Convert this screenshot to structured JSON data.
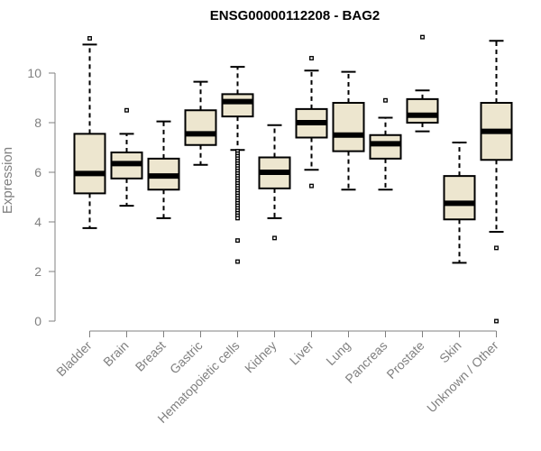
{
  "chart_data": {
    "type": "boxplot",
    "title": "ENSG00000112208 - BAG2",
    "xlabel": "",
    "ylabel": "Expression",
    "ylim": [
      0,
      11.5
    ],
    "yticks": [
      "0",
      "2",
      "4",
      "6",
      "8",
      "10"
    ],
    "grid": false,
    "legend": "none",
    "colors": {
      "box_fill": "#ede6cf",
      "stroke": "#000000",
      "axis": "#808080",
      "text": "#808080"
    },
    "categories": [
      "Bladder",
      "Brain",
      "Breast",
      "Gastric",
      "Hematopoietic cells",
      "Kidney",
      "Liver",
      "Lung",
      "Pancreas",
      "Prostate",
      "Skin",
      "Unknown / Other"
    ],
    "boxes": [
      {
        "category": "Bladder",
        "whisker_low": 3.75,
        "q1": 5.15,
        "median": 5.95,
        "q3": 7.55,
        "whisker_high": 11.15,
        "outliers": [
          11.4
        ]
      },
      {
        "category": "Brain",
        "whisker_low": 4.65,
        "q1": 5.75,
        "median": 6.35,
        "q3": 6.8,
        "whisker_high": 7.55,
        "outliers": [
          8.5
        ]
      },
      {
        "category": "Breast",
        "whisker_low": 4.15,
        "q1": 5.3,
        "median": 5.85,
        "q3": 6.55,
        "whisker_high": 8.05,
        "outliers": []
      },
      {
        "category": "Gastric",
        "whisker_low": 6.3,
        "q1": 7.1,
        "median": 7.55,
        "q3": 8.5,
        "whisker_high": 9.65,
        "outliers": []
      },
      {
        "category": "Hematopoietic cells",
        "whisker_low": 6.9,
        "q1": 8.25,
        "median": 8.85,
        "q3": 9.15,
        "whisker_high": 10.25,
        "outliers": [
          6.85,
          6.75,
          6.65,
          6.55,
          6.45,
          6.35,
          6.25,
          6.15,
          6.05,
          5.95,
          5.85,
          5.75,
          5.65,
          5.55,
          5.45,
          5.35,
          5.25,
          5.15,
          5.05,
          4.95,
          4.85,
          4.75,
          4.65,
          4.55,
          4.45,
          4.35,
          4.25,
          4.15,
          3.25,
          2.4
        ]
      },
      {
        "category": "Kidney",
        "whisker_low": 4.15,
        "q1": 5.35,
        "median": 6.0,
        "q3": 6.6,
        "whisker_high": 7.9,
        "outliers": [
          3.35
        ]
      },
      {
        "category": "Liver",
        "whisker_low": 6.1,
        "q1": 7.4,
        "median": 8.0,
        "q3": 8.55,
        "whisker_high": 10.1,
        "outliers": [
          10.6,
          5.45
        ]
      },
      {
        "category": "Lung",
        "whisker_low": 5.3,
        "q1": 6.85,
        "median": 7.5,
        "q3": 8.8,
        "whisker_high": 10.05,
        "outliers": []
      },
      {
        "category": "Pancreas",
        "whisker_low": 5.3,
        "q1": 6.55,
        "median": 7.15,
        "q3": 7.5,
        "whisker_high": 8.2,
        "outliers": [
          8.9
        ]
      },
      {
        "category": "Prostate",
        "whisker_low": 7.65,
        "q1": 8.0,
        "median": 8.3,
        "q3": 8.95,
        "whisker_high": 9.3,
        "outliers": [
          11.45
        ]
      },
      {
        "category": "Skin",
        "whisker_low": 2.35,
        "q1": 4.1,
        "median": 4.75,
        "q3": 5.85,
        "whisker_high": 7.2,
        "outliers": []
      },
      {
        "category": "Unknown / Other",
        "whisker_low": 3.6,
        "q1": 6.5,
        "median": 7.65,
        "q3": 8.8,
        "whisker_high": 11.3,
        "outliers": [
          2.95,
          0.0
        ]
      }
    ]
  }
}
